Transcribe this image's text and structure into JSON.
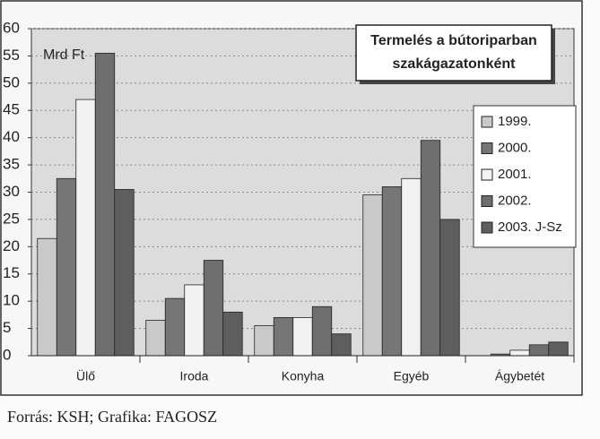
{
  "chart_data": {
    "type": "bar",
    "title": [
      "Termelés a bútoriparban",
      "szakágazatonként"
    ],
    "y_label": "Mrd Ft",
    "source": "Forrás: KSH; Grafika: FAGOSZ",
    "categories": [
      "Ülő",
      "Iroda",
      "Konyha",
      "Egyéb",
      "Ágybetét"
    ],
    "series": [
      {
        "name": "1999.",
        "color": "#c9c9c9",
        "values": [
          21.5,
          6.5,
          5.5,
          29.5,
          0
        ]
      },
      {
        "name": "2000.",
        "color": "#767676",
        "values": [
          32.5,
          10.5,
          7,
          31,
          0.3
        ]
      },
      {
        "name": "2001.",
        "color": "#f2f2f2",
        "values": [
          47,
          13,
          7,
          32.5,
          1
        ]
      },
      {
        "name": "2002.",
        "color": "#6e6e6e",
        "values": [
          55.5,
          17.5,
          9,
          39.5,
          2
        ]
      },
      {
        "name": "2003. J-Sz",
        "color": "#5e5e5e",
        "values": [
          30.5,
          8,
          4,
          25,
          2.5
        ]
      }
    ],
    "ylim": [
      0,
      60
    ],
    "yticks": [
      0,
      5,
      10,
      15,
      20,
      25,
      30,
      35,
      40,
      45,
      50,
      55,
      60
    ],
    "grid": true
  }
}
